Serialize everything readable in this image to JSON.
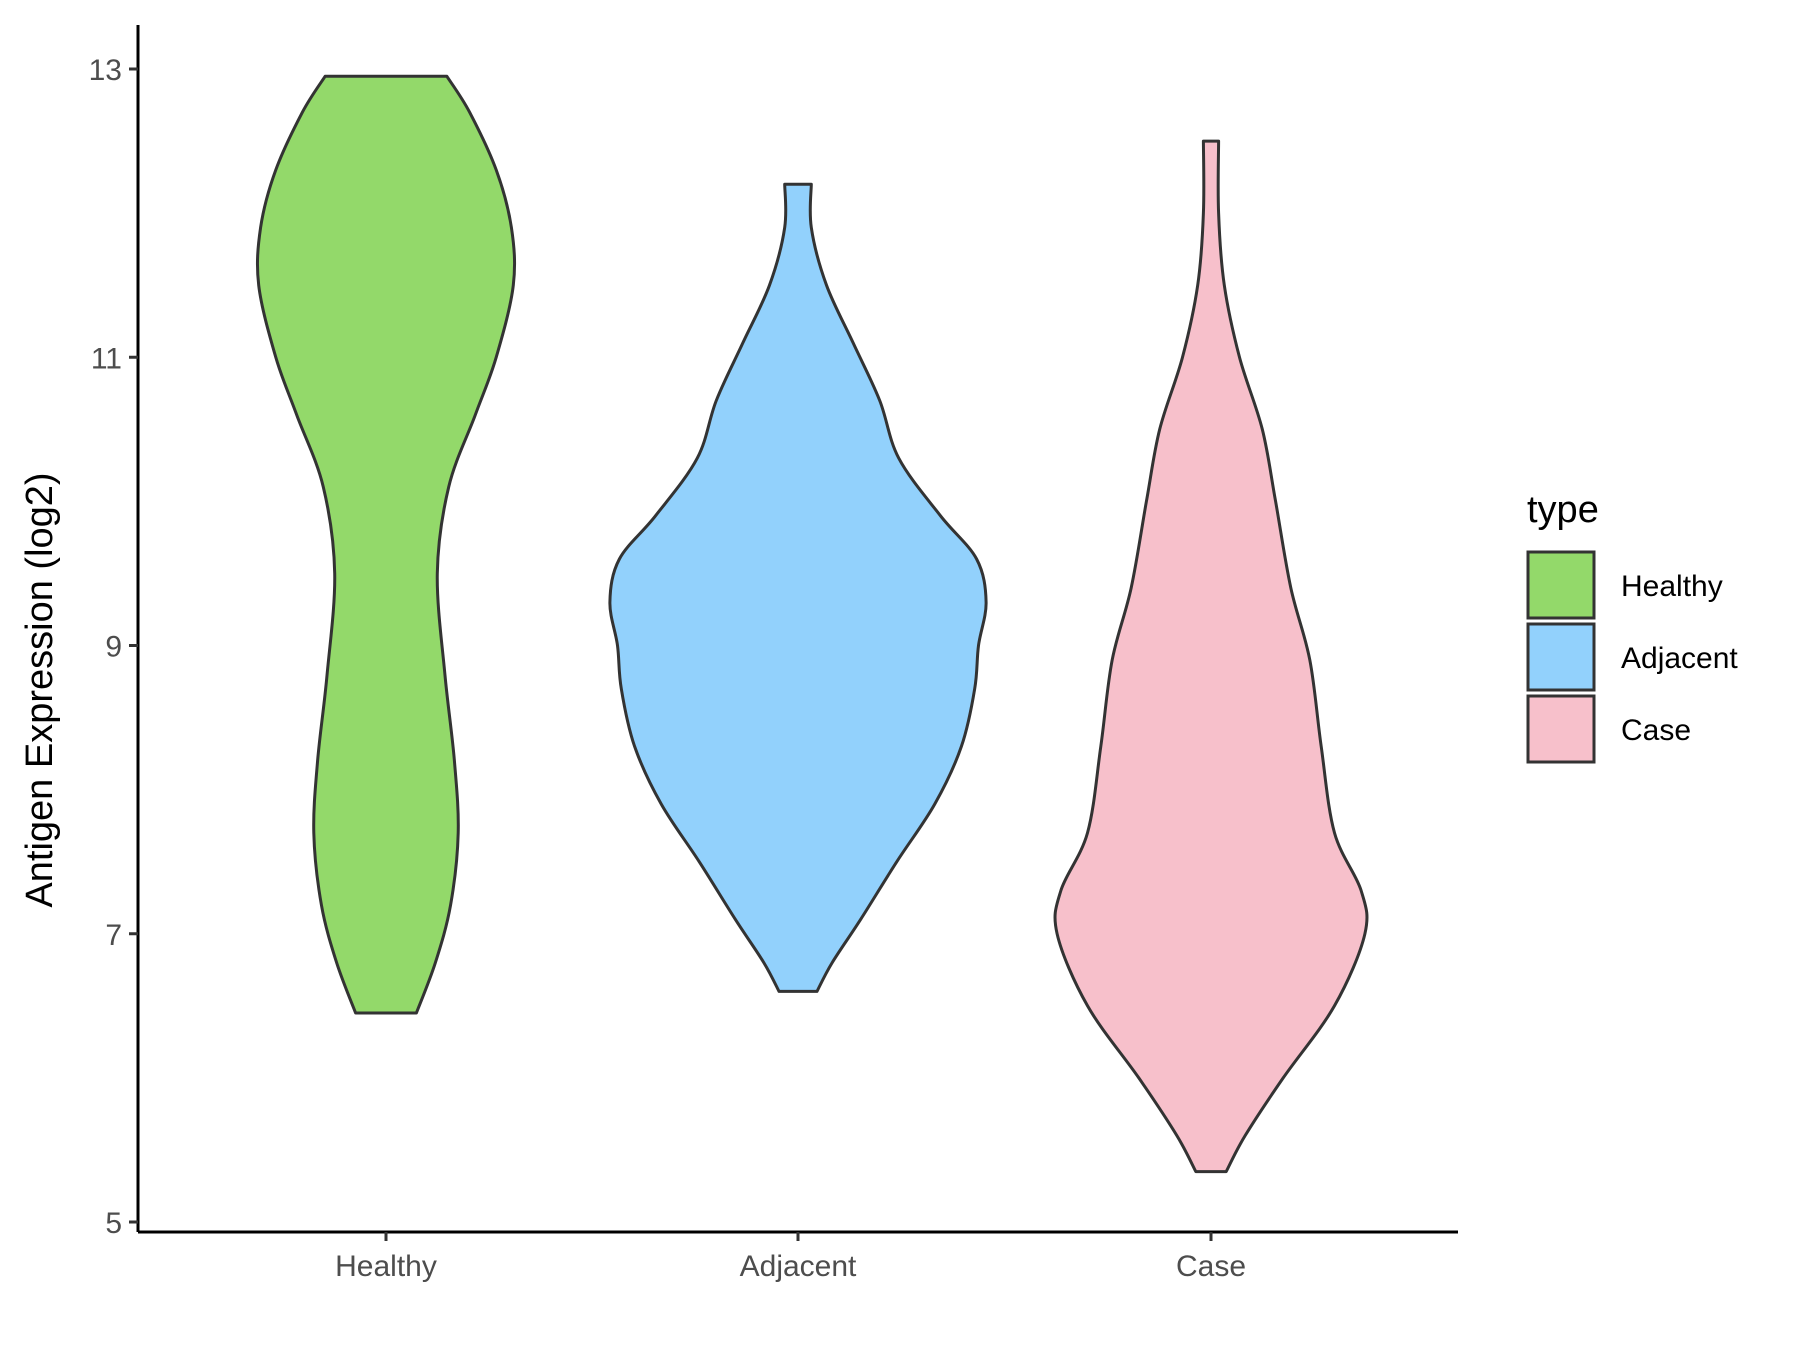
{
  "chart_data": {
    "type": "violin",
    "title": "",
    "xlabel": "",
    "ylabel": "Antigen Expression (log2)",
    "ylim": [
      5,
      13.3
    ],
    "yticks": [
      5,
      7,
      9,
      11,
      13
    ],
    "ytick_labels": [
      "5",
      "7",
      "9",
      "11",
      "13"
    ],
    "categories": [
      "Healthy",
      "Adjacent",
      "Case"
    ],
    "legend": {
      "title": "type",
      "position": "right",
      "entries": [
        "Healthy",
        "Adjacent",
        "Case"
      ]
    },
    "grid": false,
    "series": [
      {
        "name": "Healthy",
        "color": "#93D96A",
        "min": 6.45,
        "max": 12.95,
        "density_profile": [
          [
            6.45,
            0.16
          ],
          [
            6.8,
            0.26
          ],
          [
            7.2,
            0.34
          ],
          [
            7.7,
            0.38
          ],
          [
            8.2,
            0.36
          ],
          [
            8.8,
            0.31
          ],
          [
            9.5,
            0.27
          ],
          [
            10.1,
            0.33
          ],
          [
            10.6,
            0.47
          ],
          [
            11.0,
            0.58
          ],
          [
            11.5,
            0.67
          ],
          [
            11.9,
            0.66
          ],
          [
            12.3,
            0.58
          ],
          [
            12.7,
            0.44
          ],
          [
            12.95,
            0.32
          ]
        ]
      },
      {
        "name": "Adjacent",
        "color": "#92D1FC",
        "min": 6.6,
        "max": 12.2,
        "density_profile": [
          [
            6.6,
            0.1
          ],
          [
            6.8,
            0.18
          ],
          [
            7.1,
            0.33
          ],
          [
            7.5,
            0.52
          ],
          [
            7.9,
            0.72
          ],
          [
            8.3,
            0.86
          ],
          [
            8.7,
            0.93
          ],
          [
            9.0,
            0.95
          ],
          [
            9.3,
            0.99
          ],
          [
            9.6,
            0.94
          ],
          [
            9.9,
            0.75
          ],
          [
            10.3,
            0.53
          ],
          [
            10.7,
            0.43
          ],
          [
            11.1,
            0.29
          ],
          [
            11.5,
            0.15
          ],
          [
            11.9,
            0.07
          ],
          [
            12.2,
            0.07
          ]
        ]
      },
      {
        "name": "Case",
        "color": "#F7C0CB",
        "min": 5.35,
        "max": 12.5,
        "density_profile": [
          [
            5.35,
            0.08
          ],
          [
            5.6,
            0.18
          ],
          [
            6.0,
            0.38
          ],
          [
            6.5,
            0.65
          ],
          [
            7.0,
            0.81
          ],
          [
            7.3,
            0.79
          ],
          [
            7.7,
            0.65
          ],
          [
            8.3,
            0.58
          ],
          [
            8.9,
            0.52
          ],
          [
            9.4,
            0.42
          ],
          [
            10.0,
            0.34
          ],
          [
            10.5,
            0.27
          ],
          [
            11.0,
            0.15
          ],
          [
            11.5,
            0.07
          ],
          [
            12.0,
            0.04
          ],
          [
            12.5,
            0.04
          ]
        ]
      }
    ]
  }
}
